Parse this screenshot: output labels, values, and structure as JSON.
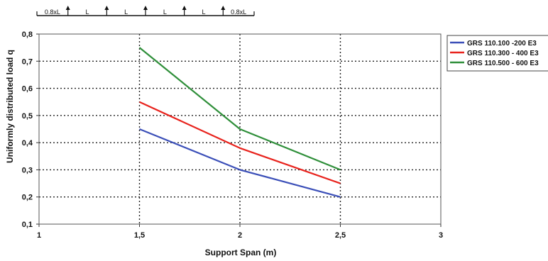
{
  "chart_data": {
    "type": "line",
    "title": "",
    "xlabel": "Support Span (m)",
    "ylabel": "Uniformly distributed load q",
    "xlim": [
      1,
      3
    ],
    "ylim": [
      0.1,
      0.8
    ],
    "x_ticks": [
      "1",
      "1,5",
      "2",
      "2,5",
      "3"
    ],
    "y_ticks": [
      "0,1",
      "0,2",
      "0,3",
      "0,4",
      "0,5",
      "0,6",
      "0,7",
      "0,8"
    ],
    "grid": true,
    "legend_position": "top-right",
    "series": [
      {
        "name": "GRS 110.100 -200 E3",
        "color": "#3b4fb8",
        "x": [
          1.5,
          2,
          2.5
        ],
        "y": [
          0.45,
          0.3,
          0.2
        ]
      },
      {
        "name": "GRS 110.300 - 400 E3",
        "color": "#e8231d",
        "x": [
          1.5,
          2,
          2.5
        ],
        "y": [
          0.55,
          0.38,
          0.25
        ]
      },
      {
        "name": "GRS 110.500 - 600 E3",
        "color": "#2f8f3a",
        "x": [
          1.5,
          2,
          2.5
        ],
        "y": [
          0.75,
          0.45,
          0.3
        ]
      }
    ],
    "span_diagram": {
      "labels": [
        "0.8xL",
        "L",
        "L",
        "L",
        "L",
        "0.8xL"
      ]
    }
  }
}
